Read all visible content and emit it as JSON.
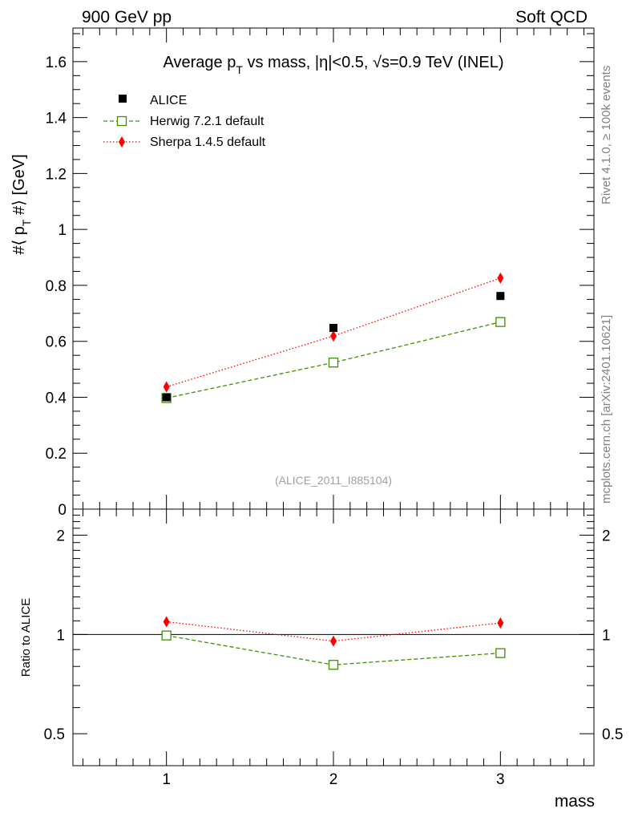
{
  "header": {
    "left_label": "900 GeV pp",
    "right_label": "Soft QCD",
    "side_rivet": "Rivet 4.1.0, ≥ 100k events",
    "side_mcplots": "mcplots.cern.ch [arXiv:2401.10621]"
  },
  "chart_data": [
    {
      "type": "scatter",
      "title": "Average p_T vs mass, |η|<0.5, √s=0.9 TeV (INEL)",
      "title_parts": {
        "pre": "Average p",
        "sub": "T",
        "mid": " vs mass, |η|<0.5, ",
        "sqrt": "√",
        "post": "s=0.9 TeV (INEL)"
      },
      "ylabel": "#⟨ p_T #⟩ [GeV]",
      "ylabel_parts": {
        "pre": "#⟨ p",
        "sub": "T",
        "post": " #⟩ [GeV]"
      },
      "xlabel": "mass",
      "xlim": [
        0.44,
        3.56
      ],
      "ylim": [
        0,
        1.72
      ],
      "y_ticks": [
        "0",
        "0.2",
        "0.4",
        "0.6",
        "0.8",
        "1",
        "1.2",
        "1.4",
        "1.6"
      ],
      "y_tick_values": [
        0,
        0.2,
        0.4,
        0.6,
        0.8,
        1.0,
        1.2,
        1.4,
        1.6
      ],
      "watermark": "(ALICE_2011_I885104)",
      "x": [
        1,
        2,
        3
      ],
      "series": [
        {
          "name": "ALICE",
          "values": [
            0.4,
            0.648,
            0.762
          ],
          "color": "#000000",
          "marker": "square-filled",
          "line": "none"
        },
        {
          "name": "Herwig 7.2.1 default",
          "values": [
            0.397,
            0.524,
            0.669
          ],
          "color": "#3f8f00",
          "marker": "square-open",
          "line": "dashed"
        },
        {
          "name": "Sherpa 1.4.5 default",
          "values": [
            0.437,
            0.619,
            0.826
          ],
          "color": "#ff0000",
          "marker": "diamond-filled",
          "line": "dotted"
        }
      ]
    },
    {
      "type": "scatter",
      "ylabel": "Ratio to ALICE",
      "xlabel": "mass",
      "xlim": [
        0.44,
        3.56
      ],
      "ylim": [
        0.4,
        2.4
      ],
      "y_scale": "log",
      "y_ticks": [
        "0.5",
        "1",
        "2"
      ],
      "y_tick_values": [
        0.5,
        1,
        2
      ],
      "x_ticks": [
        "1",
        "2",
        "3"
      ],
      "x": [
        1,
        2,
        3
      ],
      "reference": 1,
      "series": [
        {
          "name": "Herwig 7.2.1 default",
          "values": [
            0.993,
            0.809,
            0.878
          ],
          "color": "#3f8f00",
          "marker": "square-open",
          "line": "dashed"
        },
        {
          "name": "Sherpa 1.4.5 default",
          "values": [
            1.093,
            0.955,
            1.084
          ],
          "color": "#ff0000",
          "marker": "diamond-filled",
          "line": "dotted"
        }
      ]
    }
  ]
}
